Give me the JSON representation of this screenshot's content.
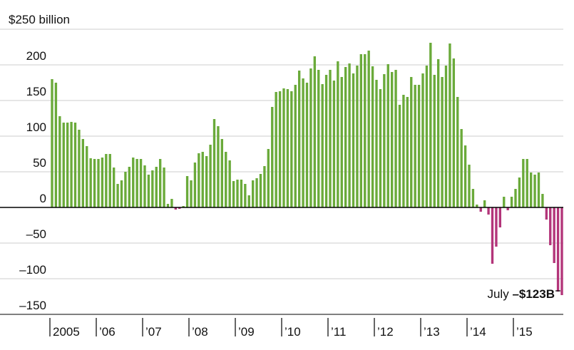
{
  "chart_data": {
    "type": "bar",
    "ylabel": "$250 billion",
    "ylim": [
      -150,
      250
    ],
    "yticks": [
      {
        "value": 250,
        "label": ""
      },
      {
        "value": 200,
        "label": "200"
      },
      {
        "value": 150,
        "label": "150"
      },
      {
        "value": 100,
        "label": "100"
      },
      {
        "value": 50,
        "label": "50"
      },
      {
        "value": 0,
        "label": "0"
      },
      {
        "value": -50,
        "label": "–50"
      },
      {
        "value": -100,
        "label": "–100"
      },
      {
        "value": -150,
        "label": "–150"
      }
    ],
    "x_labels": [
      "2005",
      "’06",
      "’07",
      "’08",
      "’09",
      "’10",
      "’11",
      "’12",
      "’13",
      "’14",
      "’15"
    ],
    "grid": true,
    "colors": {
      "positive": "#6aaa3a",
      "negative": "#b3357a",
      "grid": "#cccccc",
      "axis": "#000000"
    },
    "annotation": {
      "label": "July ",
      "value": "–$123B"
    },
    "values": [
      180,
      175,
      128,
      119,
      119,
      120,
      119,
      109,
      96,
      86,
      69,
      68,
      68,
      70,
      75,
      75,
      56,
      33,
      38,
      50,
      57,
      70,
      68,
      68,
      59,
      46,
      52,
      57,
      68,
      56,
      5,
      12,
      -3,
      -2,
      2,
      44,
      38,
      63,
      76,
      78,
      72,
      88,
      124,
      114,
      96,
      78,
      66,
      37,
      39,
      39,
      33,
      17,
      38,
      41,
      47,
      58,
      82,
      141,
      162,
      163,
      167,
      166,
      163,
      172,
      192,
      181,
      175,
      195,
      212,
      193,
      173,
      186,
      193,
      178,
      205,
      183,
      197,
      202,
      188,
      199,
      215,
      215,
      220,
      198,
      179,
      166,
      187,
      201,
      190,
      193,
      144,
      158,
      155,
      183,
      172,
      172,
      188,
      199,
      231,
      186,
      208,
      183,
      199,
      230,
      209,
      155,
      110,
      87,
      60,
      26,
      4,
      -6,
      10,
      -10,
      -79,
      -55,
      -28,
      15,
      -4,
      15,
      26,
      42,
      68,
      68,
      49,
      46,
      49,
      19,
      -17,
      -53,
      -78,
      -118,
      -123
    ]
  }
}
